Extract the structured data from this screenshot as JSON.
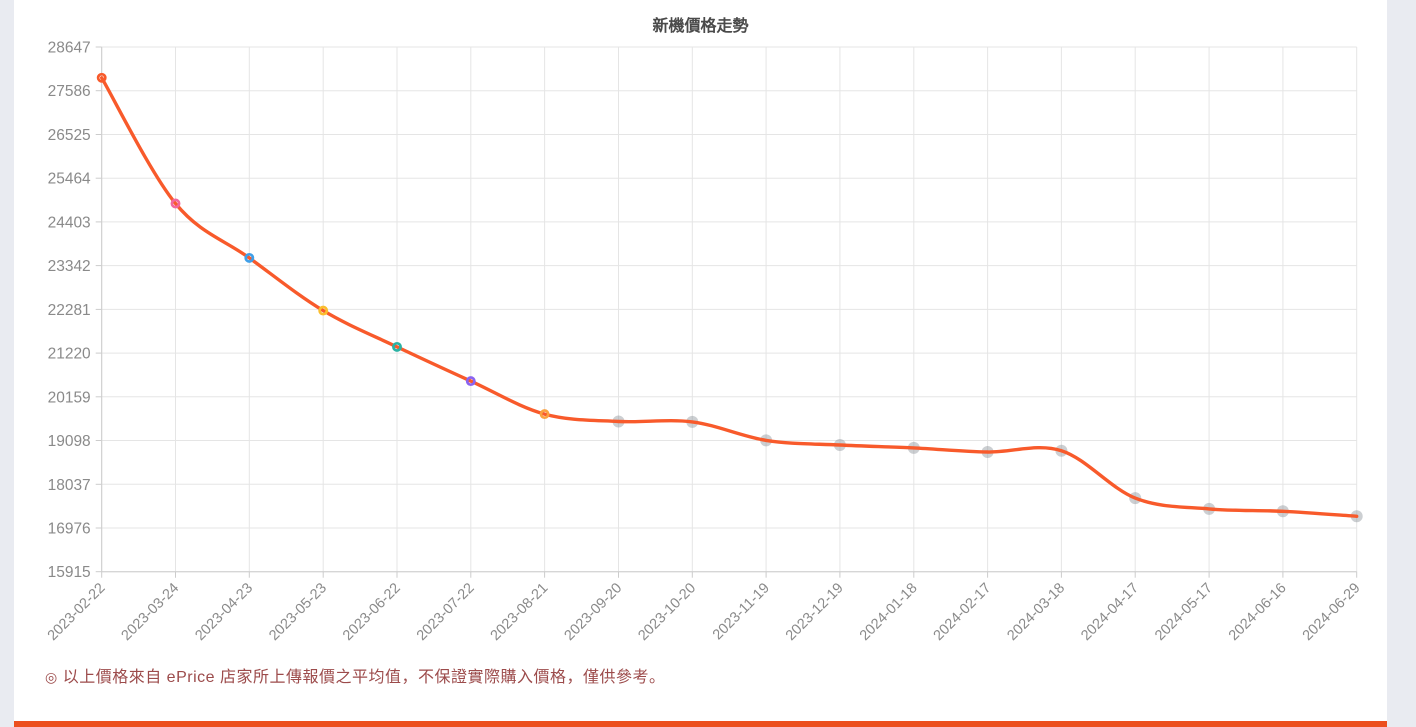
{
  "page": {
    "background_color": "#E9EBF1",
    "card_background": "#FFFFFF",
    "footer_bar_color": "#EC4F1E"
  },
  "chart_data": {
    "type": "line",
    "title": "新機價格走勢",
    "smooth": true,
    "grid": true,
    "legend": "none",
    "xlabel": "",
    "ylabel": "",
    "line_color": "#F85A2B",
    "grid_color": "#E5E5E5",
    "axis_line_color": "#CCCCCC",
    "axis_label_color": "#8A8A8A",
    "title_color": "#4A4A4A",
    "ylim": [
      15915,
      28647
    ],
    "y_ticks": [
      28647,
      27586,
      26525,
      25464,
      24403,
      23342,
      22281,
      21220,
      20159,
      19098,
      18037,
      16976,
      15915
    ],
    "categories": [
      "2023-02-22",
      "2023-03-24",
      "2023-04-23",
      "2023-05-23",
      "2023-06-22",
      "2023-07-22",
      "2023-08-21",
      "2023-09-20",
      "2023-10-20",
      "2023-11-19",
      "2023-12-19",
      "2024-01-18",
      "2024-02-17",
      "2024-03-18",
      "2024-04-17",
      "2024-05-17",
      "2024-06-16",
      "2024-06-29"
    ],
    "values": [
      27900,
      24850,
      23530,
      22250,
      21370,
      20540,
      19740,
      19560,
      19550,
      19100,
      18990,
      18920,
      18820,
      18850,
      17700,
      17440,
      17380,
      17260
    ],
    "markers": [
      {
        "style": "ring",
        "color": "#F85A2B"
      },
      {
        "style": "ring",
        "color": "#F2679E"
      },
      {
        "style": "ring",
        "color": "#3F9FE8"
      },
      {
        "style": "ring",
        "color": "#FBBE2E"
      },
      {
        "style": "ring",
        "color": "#2BB2A4"
      },
      {
        "style": "ring",
        "color": "#8A63F0"
      },
      {
        "style": "ring",
        "color": "#FBA13F"
      },
      {
        "style": "dot",
        "color": "#8E959C"
      },
      {
        "style": "dot",
        "color": "#8E959C"
      },
      {
        "style": "dot",
        "color": "#8E959C"
      },
      {
        "style": "dot",
        "color": "#8E959C"
      },
      {
        "style": "dot",
        "color": "#8E959C"
      },
      {
        "style": "dot",
        "color": "#8E959C"
      },
      {
        "style": "dot",
        "color": "#8E959C"
      },
      {
        "style": "dot",
        "color": "#8E959C"
      },
      {
        "style": "dot",
        "color": "#8E959C"
      },
      {
        "style": "dot",
        "color": "#8E959C"
      },
      {
        "style": "dot",
        "color": "#8E959C"
      }
    ]
  },
  "note": {
    "bullet": "◎",
    "text": "以上價格來自 ePrice 店家所上傳報價之平均值，不保證實際購入價格，僅供參考。",
    "color": "#9C4B4B"
  }
}
